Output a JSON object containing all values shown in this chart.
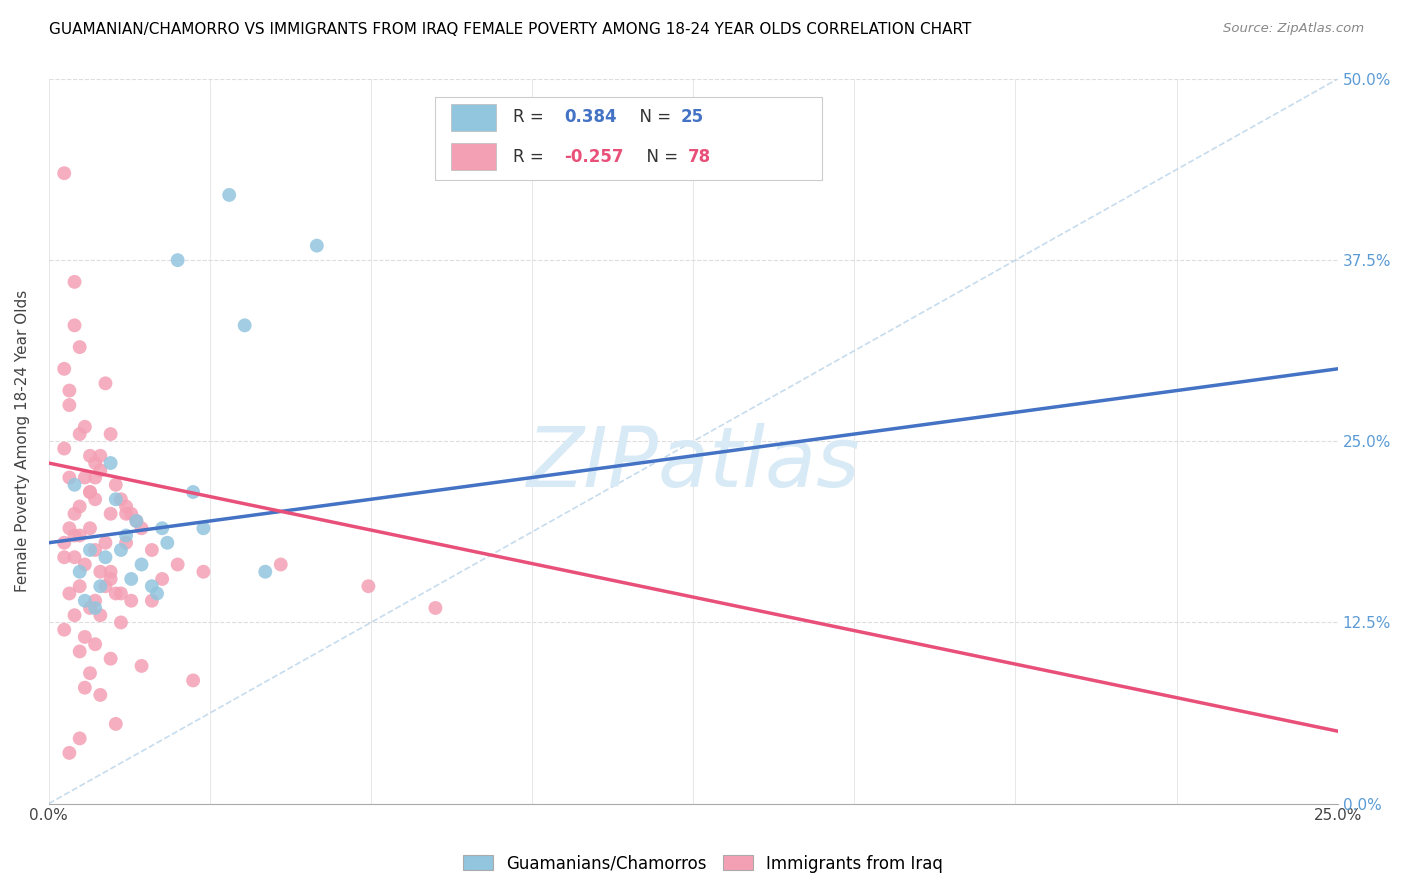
{
  "title": "GUAMANIAN/CHAMORRO VS IMMIGRANTS FROM IRAQ FEMALE POVERTY AMONG 18-24 YEAR OLDS CORRELATION CHART",
  "source": "Source: ZipAtlas.com",
  "ylabel": "Female Poverty Among 18-24 Year Olds",
  "ytick_vals": [
    0.0,
    12.5,
    25.0,
    37.5,
    50.0
  ],
  "xtick_vals": [
    0.0,
    3.125,
    6.25,
    9.375,
    12.5,
    15.625,
    18.75,
    21.875,
    25.0
  ],
  "xlim": [
    0.0,
    25.0
  ],
  "ylim": [
    0.0,
    50.0
  ],
  "r1": 0.384,
  "n1": 25,
  "r2": -0.257,
  "n2": 78,
  "color_blue": "#92C5DE",
  "color_pink": "#F4A0B4",
  "color_blue_line": "#4472C4",
  "color_pink_line": "#E8507A",
  "color_dashed": "#B8D4EA",
  "color_grid": "#DDDDDD",
  "watermark_color": "#D8EAF5",
  "blue_line_y0": 18.0,
  "blue_line_y1": 30.0,
  "pink_line_y0": 23.5,
  "pink_line_y1": 5.0,
  "blue_points_x": [
    1.5,
    2.8,
    3.5,
    1.0,
    1.8,
    0.5,
    1.2,
    0.8,
    1.3,
    2.2,
    0.9,
    1.7,
    2.5,
    1.1,
    0.6,
    2.0,
    3.0,
    0.7,
    1.4,
    2.3,
    3.8,
    5.2,
    1.6,
    2.1,
    4.2
  ],
  "blue_points_y": [
    18.5,
    21.5,
    42.0,
    15.0,
    16.5,
    22.0,
    23.5,
    17.5,
    21.0,
    19.0,
    13.5,
    19.5,
    37.5,
    17.0,
    16.0,
    15.0,
    19.0,
    14.0,
    17.5,
    18.0,
    33.0,
    38.5,
    15.5,
    14.5,
    16.0
  ],
  "pink_points_x": [
    0.3,
    0.5,
    0.6,
    0.8,
    0.4,
    0.9,
    1.0,
    0.7,
    1.2,
    0.5,
    0.3,
    1.1,
    0.6,
    0.4,
    1.3,
    0.8,
    1.5,
    0.9,
    1.4,
    1.7,
    0.5,
    0.3,
    1.0,
    0.7,
    1.6,
    0.4,
    0.8,
    1.2,
    0.6,
    0.9,
    1.5,
    2.0,
    1.8,
    2.5,
    3.0,
    0.3,
    0.5,
    0.7,
    1.0,
    1.2,
    0.4,
    0.6,
    0.9,
    1.1,
    0.8,
    1.3,
    1.6,
    2.2,
    0.5,
    0.3,
    0.7,
    1.0,
    1.4,
    0.6,
    0.9,
    1.2,
    1.8,
    2.8,
    4.5,
    7.5,
    0.4,
    0.6,
    0.8,
    1.1,
    1.5,
    0.3,
    0.5,
    0.9,
    1.2,
    1.4,
    0.7,
    1.0,
    1.3,
    0.6,
    0.4,
    0.8,
    2.0,
    6.2
  ],
  "pink_points_y": [
    43.5,
    36.0,
    25.5,
    24.0,
    27.5,
    22.5,
    23.0,
    26.0,
    25.5,
    33.0,
    30.0,
    29.0,
    31.5,
    28.5,
    22.0,
    21.5,
    20.5,
    23.5,
    21.0,
    19.5,
    20.0,
    24.5,
    24.0,
    22.5,
    20.0,
    19.0,
    21.5,
    20.0,
    18.5,
    21.0,
    18.0,
    17.5,
    19.0,
    16.5,
    16.0,
    18.0,
    17.0,
    16.5,
    16.0,
    15.5,
    14.5,
    15.0,
    14.0,
    15.0,
    13.5,
    14.5,
    14.0,
    15.5,
    13.0,
    12.0,
    11.5,
    13.0,
    12.5,
    10.5,
    11.0,
    10.0,
    9.5,
    8.5,
    16.5,
    13.5,
    22.5,
    20.5,
    19.0,
    18.0,
    20.0,
    17.0,
    18.5,
    17.5,
    16.0,
    14.5,
    8.0,
    7.5,
    5.5,
    4.5,
    3.5,
    9.0,
    14.0,
    15.0
  ]
}
